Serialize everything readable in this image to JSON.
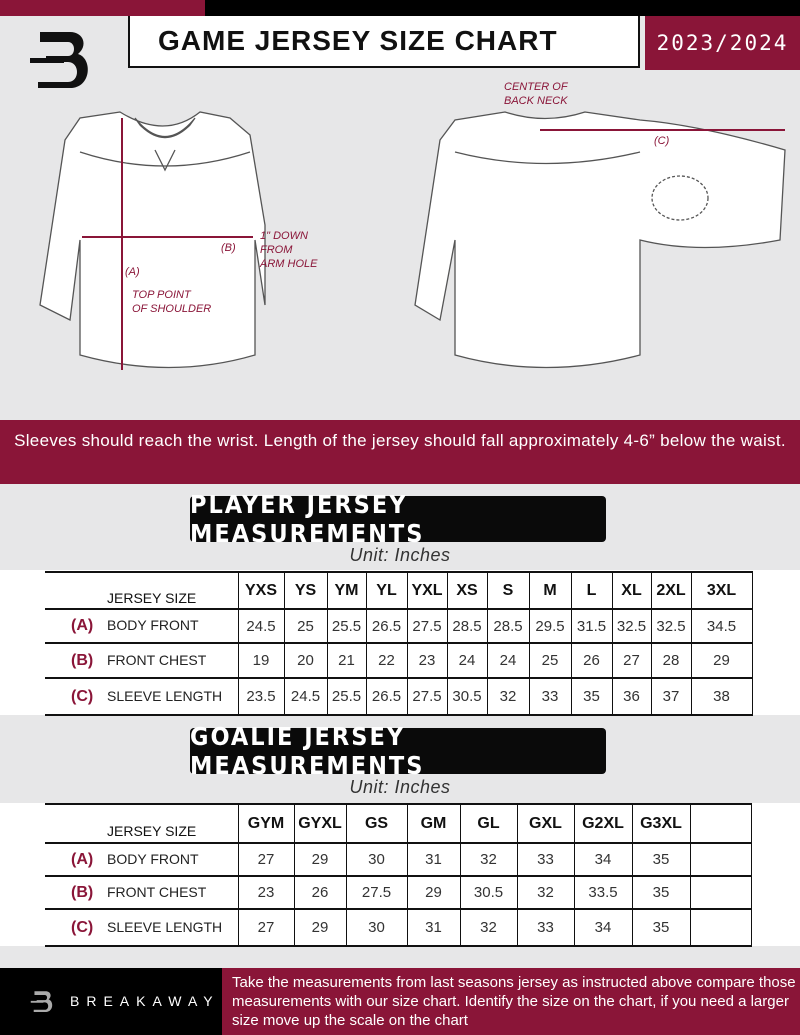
{
  "header": {
    "title": "GAME JERSEY SIZE CHART",
    "season": "2023/2024",
    "logo_text": "B"
  },
  "diagram": {
    "label_a": "(A)",
    "label_b": "(B)",
    "label_c": "(C)",
    "top_point": "TOP POINT\nOF SHOULDER",
    "down_from_arm": "1\" DOWN\nFROM\nARM HOLE",
    "center_back": "CENTER OF\nBACK NECK"
  },
  "note": "Sleeves should reach the wrist. Length of the jersey should fall approximately 4-6” below the waist.",
  "player": {
    "title": "PLAYER JERSEY MEASUREMENTS",
    "unit": "Unit: Inches",
    "size_label": "JERSEY SIZE",
    "sizes": [
      "YXS",
      "YS",
      "YM",
      "YL",
      "YXL",
      "XS",
      "S",
      "M",
      "L",
      "XL",
      "2XL",
      "3XL"
    ],
    "rows": [
      {
        "code": "(A)",
        "name": "BODY FRONT",
        "values": [
          "24.5",
          "25",
          "25.5",
          "26.5",
          "27.5",
          "28.5",
          "28.5",
          "29.5",
          "31.5",
          "32.5",
          "32.5",
          "34.5"
        ]
      },
      {
        "code": "(B)",
        "name": "FRONT CHEST",
        "values": [
          "19",
          "20",
          "21",
          "22",
          "23",
          "24",
          "24",
          "25",
          "26",
          "27",
          "28",
          "29"
        ]
      },
      {
        "code": "(C)",
        "name": "SLEEVE LENGTH",
        "values": [
          "23.5",
          "24.5",
          "25.5",
          "26.5",
          "27.5",
          "30.5",
          "32",
          "33",
          "35",
          "36",
          "37",
          "38"
        ]
      }
    ]
  },
  "goalie": {
    "title": "GOALIE JERSEY MEASUREMENTS",
    "unit": "Unit: Inches",
    "size_label": "JERSEY SIZE",
    "sizes": [
      "GYM",
      "GYXL",
      "GS",
      "GM",
      "GL",
      "GXL",
      "G2XL",
      "G3XL",
      ""
    ],
    "rows": [
      {
        "code": "(A)",
        "name": "BODY FRONT",
        "values": [
          "27",
          "29",
          "30",
          "31",
          "32",
          "33",
          "34",
          "35",
          ""
        ]
      },
      {
        "code": "(B)",
        "name": "FRONT CHEST",
        "values": [
          "23",
          "26",
          "27.5",
          "29",
          "30.5",
          "32",
          "33.5",
          "35",
          ""
        ]
      },
      {
        "code": "(C)",
        "name": "SLEEVE LENGTH",
        "values": [
          "27",
          "29",
          "30",
          "31",
          "32",
          "33",
          "34",
          "35",
          ""
        ]
      }
    ]
  },
  "footer": {
    "brand": "BREAKAWAY",
    "instructions": "Take the measurements from last seasons jersey as instructed above compare those measurements  with our size chart. Identify the size on the chart, if you need a larger size move up the scale on the chart"
  },
  "colors": {
    "accent": "#8a1538",
    "dark": "#0a0a0a",
    "background": "#e7e7e8"
  }
}
